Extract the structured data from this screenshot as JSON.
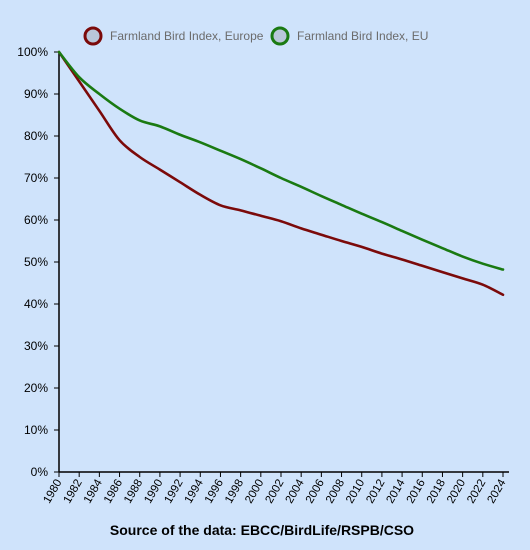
{
  "chart_data": {
    "type": "line",
    "x": [
      1980,
      1982,
      1984,
      1986,
      1988,
      1990,
      1992,
      1994,
      1996,
      1998,
      2000,
      2002,
      2004,
      2006,
      2008,
      2010,
      2012,
      2014,
      2016,
      2018,
      2020,
      2022,
      2024
    ],
    "x_tick_labels": [
      "1980",
      "1982",
      "1984",
      "1986",
      "1988",
      "1990",
      "1992",
      "1994",
      "1996",
      "1998",
      "2000",
      "2002",
      "2004",
      "2006",
      "2008",
      "2010",
      "2012",
      "2014",
      "2016",
      "2018",
      "2020",
      "2022",
      "2024"
    ],
    "y_tick_labels": [
      "0%",
      "10%",
      "20%",
      "30%",
      "40%",
      "50%",
      "60%",
      "70%",
      "80%",
      "90%",
      "100%"
    ],
    "ylim": [
      0,
      100
    ],
    "xlim": [
      1980,
      2024
    ],
    "grid": false,
    "legend_position": "top",
    "series": [
      {
        "name": "Farmland Bird Index, Europe",
        "color": "#7b0a0a",
        "values": [
          100,
          93,
          86,
          79,
          75,
          72,
          69,
          66,
          63.5,
          62.3,
          61,
          59.7,
          58,
          56.5,
          55,
          53.6,
          52,
          50.6,
          49.1,
          47.6,
          46.1,
          44.6,
          42.2
        ]
      },
      {
        "name": "Farmland Bird Index, EU",
        "color": "#1a7a12",
        "values": [
          100,
          94,
          90,
          86.5,
          83.7,
          82.3,
          80.3,
          78.5,
          76.5,
          74.5,
          72.3,
          70,
          67.9,
          65.7,
          63.6,
          61.5,
          59.5,
          57.4,
          55.3,
          53.3,
          51.3,
          49.6,
          48.2
        ]
      }
    ]
  },
  "source_note": "Source of the data: EBCC/BirdLife/RSPB/CSO"
}
